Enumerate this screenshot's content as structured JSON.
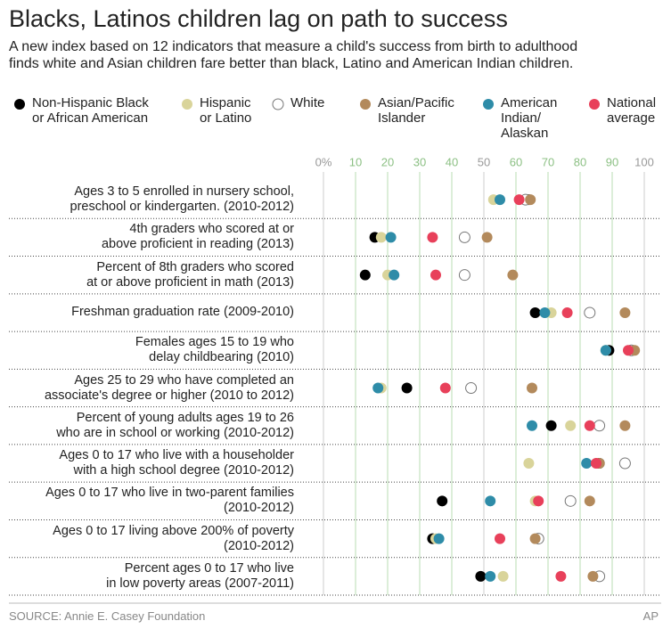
{
  "chart_data": {
    "type": "dot",
    "title": "Blacks, Latinos children lag on path to success",
    "subtitle": "A new index based on 12 indicators that measure a child's success from birth to adulthood\nfinds white and Asian children fare better than black, Latino and American Indian children.",
    "source": "SOURCE: Annie E. Casey Foundation",
    "credit": "AP",
    "categories": [
      "Ages 3 to 5 enrolled in nursery school,\npreschool or kindergarten. (2010-2012)",
      "4th graders who scored at or\nabove proficient in reading (2013)",
      "Percent of 8th graders who scored\nat or above proficient in math (2013)",
      "Freshman graduation rate (2009-2010)",
      "Females ages 15 to 19 who\ndelay childbearing (2010)",
      "Ages 25 to 29 who have completed an\nassociate's degree or higher (2010 to 2012)",
      "Percent of young adults ages 19 to 26\nwho are in school or working (2010-2012)",
      "Ages 0 to 17 who live with a householder\nwith a high school degree (2010-2012)",
      "Ages 0 to 17 who live in two-parent families\n(2010-2012)",
      "Ages 0 to 17 living above 200% of poverty\n(2010-2012)",
      "Percent ages 0 to 17 who live\nin low poverty areas (2007-2011)"
    ],
    "series": [
      {
        "name": "Non-Hispanic Black\nor African American",
        "color": "#000000",
        "values": [
          64,
          16,
          13,
          66,
          89,
          26,
          71,
          86,
          37,
          34,
          49
        ]
      },
      {
        "name": "Hispanic\nor Latino",
        "color": "#d9d49a",
        "values": [
          53,
          18,
          20,
          71,
          88,
          18,
          77,
          64,
          66,
          35,
          56
        ]
      },
      {
        "name": "White",
        "color": "#ffffff",
        "values": [
          63,
          44,
          44,
          83,
          96,
          46,
          86,
          94,
          77,
          67,
          86
        ]
      },
      {
        "name": "Asian/Pacific\nIslander",
        "color": "#b38a5c",
        "values": [
          64.5,
          51,
          59,
          94,
          97,
          65,
          94,
          86,
          83,
          66,
          84
        ]
      },
      {
        "name": "American\nIndian/\nAlaskan",
        "color": "#2e8ca8",
        "values": [
          55,
          21,
          22,
          69,
          88,
          17,
          65,
          82,
          52,
          36,
          52
        ]
      },
      {
        "name": "National\naverage",
        "color": "#e8405a",
        "values": [
          61,
          34,
          35,
          76,
          95,
          38,
          83,
          85,
          67,
          55,
          74
        ]
      }
    ],
    "xlim": [
      0,
      100
    ],
    "xticks": [
      {
        "value": 0,
        "label": "0%"
      },
      10,
      20,
      30,
      40,
      50,
      60,
      70,
      80,
      90,
      100
    ]
  }
}
